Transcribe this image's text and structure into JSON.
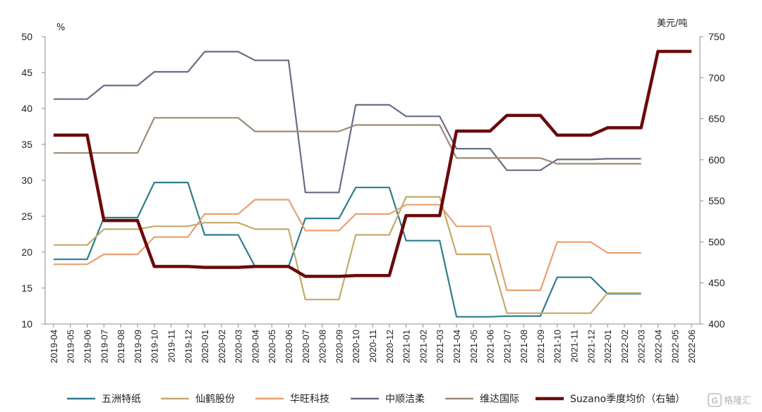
{
  "chart_data": {
    "type": "line",
    "title": "",
    "y_left_label": "%",
    "y_right_label": "美元/吨",
    "y_left_lim": [
      10,
      50
    ],
    "y_left_ticks": [
      10,
      15,
      20,
      25,
      30,
      35,
      40,
      45,
      50
    ],
    "y_right_lim": [
      400,
      750
    ],
    "y_right_ticks": [
      400,
      450,
      500,
      550,
      600,
      650,
      700,
      750
    ],
    "grid": false,
    "legend_position": "bottom",
    "x": [
      "2019-04",
      "2019-05",
      "2019-06",
      "2019-07",
      "2019-08",
      "2019-09",
      "2019-10",
      "2019-11",
      "2019-12",
      "2020-01",
      "2020-02",
      "2020-03",
      "2020-04",
      "2020-05",
      "2020-06",
      "2020-07",
      "2020-08",
      "2020-09",
      "2020-10",
      "2020-11",
      "2020-12",
      "2021-01",
      "2021-02",
      "2021-03",
      "2021-04",
      "2021-05",
      "2021-06",
      "2021-07",
      "2021-08",
      "2021-09",
      "2021-10",
      "2021-11",
      "2021-12",
      "2022-01",
      "2022-02",
      "2022-03",
      "2022-04",
      "2022-05",
      "2022-06"
    ],
    "series": [
      {
        "name": "五洲特纸",
        "axis": "left",
        "color": "#2E7D8C",
        "width": 2.2,
        "values": [
          19,
          19,
          19,
          24.8,
          24.8,
          24.8,
          29.7,
          29.7,
          29.7,
          22.4,
          22.4,
          22.4,
          18,
          18,
          18,
          24.7,
          24.7,
          24.7,
          29,
          29,
          29,
          21.6,
          21.6,
          21.6,
          11,
          11,
          11,
          11.1,
          11.1,
          11.1,
          16.5,
          16.5,
          16.5,
          14.2,
          14.2,
          14.2,
          null,
          null,
          null
        ]
      },
      {
        "name": "仙鹤股份",
        "axis": "left",
        "color": "#C4AA6A",
        "width": 2.2,
        "values": [
          21,
          21,
          21,
          23.2,
          23.2,
          23.2,
          23.6,
          23.6,
          23.6,
          24.1,
          24.1,
          24.1,
          23.2,
          23.2,
          23.2,
          13.4,
          13.4,
          13.4,
          22.4,
          22.4,
          22.4,
          27.7,
          27.7,
          27.7,
          19.7,
          19.7,
          19.7,
          11.5,
          11.5,
          11.5,
          11.5,
          11.5,
          11.5,
          14.3,
          14.3,
          14.3,
          null,
          null,
          null
        ]
      },
      {
        "name": "华旺科技",
        "axis": "left",
        "color": "#E8A070",
        "width": 2.2,
        "values": [
          18.3,
          18.3,
          18.3,
          19.7,
          19.7,
          19.7,
          22.1,
          22.1,
          22.1,
          25.3,
          25.3,
          25.3,
          27.3,
          27.3,
          27.3,
          23,
          23,
          23,
          25.3,
          25.3,
          25.3,
          26.6,
          26.6,
          26.6,
          23.6,
          23.6,
          23.6,
          14.7,
          14.7,
          14.7,
          21.4,
          21.4,
          21.4,
          19.9,
          19.9,
          19.9,
          null,
          null,
          null
        ]
      },
      {
        "name": "中顺洁柔",
        "axis": "left",
        "color": "#6C6B86",
        "width": 2.2,
        "values": [
          41.3,
          41.3,
          41.3,
          43.2,
          43.2,
          43.2,
          45.1,
          45.1,
          45.1,
          47.9,
          47.9,
          47.9,
          46.7,
          46.7,
          46.7,
          28.3,
          28.3,
          28.3,
          40.5,
          40.5,
          40.5,
          38.9,
          38.9,
          38.9,
          34.4,
          34.4,
          34.4,
          31.4,
          31.4,
          31.4,
          32.9,
          32.9,
          32.9,
          33,
          33,
          33,
          null,
          null,
          null
        ]
      },
      {
        "name": "维达国际",
        "axis": "left",
        "color": "#9C8A78",
        "width": 2.2,
        "values": [
          33.8,
          33.8,
          33.8,
          33.8,
          33.8,
          33.8,
          38.7,
          38.7,
          38.7,
          38.7,
          38.7,
          38.7,
          36.8,
          36.8,
          36.8,
          36.8,
          36.8,
          36.8,
          37.7,
          37.7,
          37.7,
          37.7,
          37.7,
          37.7,
          33.1,
          33.1,
          33.1,
          33.1,
          33.1,
          33.1,
          32.3,
          32.3,
          32.3,
          32.3,
          32.3,
          32.3,
          null,
          null,
          null
        ]
      },
      {
        "name": "Suzano季度均价（右轴）",
        "axis": "right",
        "color": "#6B0A0A",
        "width": 4.5,
        "values": [
          630,
          630,
          630,
          526,
          526,
          526,
          470,
          470,
          470,
          469,
          469,
          469,
          470,
          470,
          470,
          458,
          458,
          458,
          459,
          459,
          459,
          532,
          532,
          532,
          635,
          635,
          635,
          654,
          654,
          654,
          630,
          630,
          630,
          639,
          639,
          639,
          732,
          732,
          732
        ]
      }
    ]
  },
  "watermark": {
    "text": "格隆汇",
    "icon": "g-logo-icon"
  }
}
